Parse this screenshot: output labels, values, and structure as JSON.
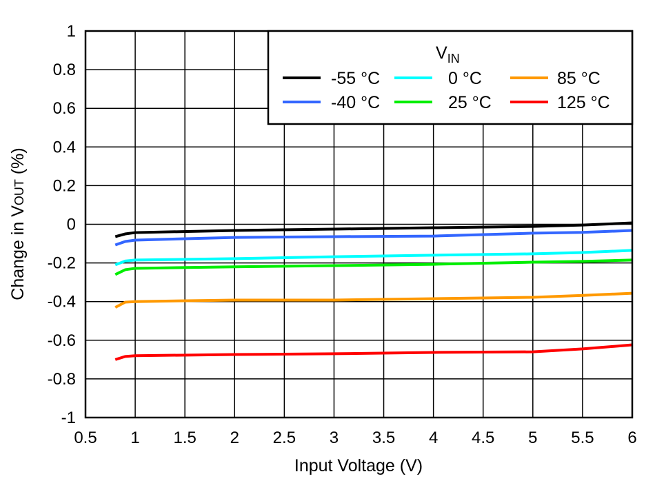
{
  "chart_data": {
    "type": "line",
    "xlabel": "Input Voltage (V)",
    "ylabel": {
      "main": "Change in V",
      "sub": "OUT",
      "suffix": " (%)"
    },
    "xlim": [
      0.5,
      6
    ],
    "ylim": [
      -1,
      1
    ],
    "xticks": [
      "0.5",
      "1",
      "1.5",
      "2",
      "2.5",
      "3",
      "3.5",
      "4",
      "4.5",
      "5",
      "5.5",
      "6"
    ],
    "yticks": [
      "1",
      "0.8",
      "0.6",
      "0.4",
      "0.2",
      "0",
      "-0.2",
      "-0.4",
      "-0.6",
      "-0.8",
      "-1"
    ],
    "grid": true,
    "legend": {
      "title_main": "V",
      "title_sub": "IN",
      "placement": "top-right"
    },
    "x": [
      0.8,
      0.9,
      1,
      2,
      3,
      4,
      5,
      5.5,
      6
    ],
    "series": [
      {
        "name": "-55 °C",
        "color": "#000000",
        "values": [
          -0.064,
          -0.05,
          -0.043,
          -0.032,
          -0.025,
          -0.018,
          -0.011,
          -0.004,
          0.007
        ]
      },
      {
        "name": "-40 °C",
        "color": "#3366ff",
        "values": [
          -0.107,
          -0.089,
          -0.082,
          -0.068,
          -0.064,
          -0.061,
          -0.046,
          -0.042,
          -0.032
        ]
      },
      {
        "name": "0 °C",
        "color": "#00ffff",
        "values": [
          -0.21,
          -0.19,
          -0.185,
          -0.178,
          -0.168,
          -0.16,
          -0.153,
          -0.146,
          -0.135
        ]
      },
      {
        "name": "25 °C",
        "color": "#00ee00",
        "values": [
          -0.26,
          -0.235,
          -0.228,
          -0.22,
          -0.214,
          -0.207,
          -0.196,
          -0.192,
          -0.185
        ]
      },
      {
        "name": "85 °C",
        "color": "#ff9900",
        "values": [
          -0.43,
          -0.403,
          -0.4,
          -0.392,
          -0.392,
          -0.385,
          -0.378,
          -0.368,
          -0.357
        ]
      },
      {
        "name": "125 °C",
        "color": "#ff0000",
        "values": [
          -0.7,
          -0.684,
          -0.68,
          -0.674,
          -0.67,
          -0.663,
          -0.66,
          -0.645,
          -0.624
        ]
      }
    ]
  }
}
